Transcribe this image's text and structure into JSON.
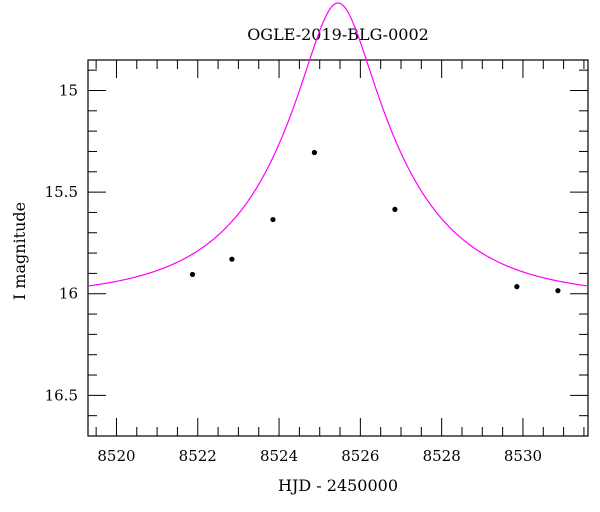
{
  "chart_data": {
    "type": "scatter",
    "title": "OGLE-2019-BLG-0002",
    "xlabel": "HJD - 2450000",
    "ylabel": "I magnitude",
    "xlim": [
      8519.3,
      8531.6
    ],
    "ylim": [
      16.7,
      14.85
    ],
    "y_inverted": true,
    "x_ticks": [
      8520,
      8522,
      8524,
      8526,
      8528,
      8530
    ],
    "x_tick_labels": [
      "8520",
      "8522",
      "8524",
      "8526",
      "8528",
      "8530"
    ],
    "y_ticks": [
      15,
      15.5,
      16,
      16.5
    ],
    "y_tick_labels": [
      "15",
      "15.5",
      "16",
      "16.5"
    ],
    "grid": false,
    "series": [
      {
        "kind": "points",
        "color": "#000000",
        "x": [
          8521.87,
          8522.84,
          8523.85,
          8524.87,
          8526.85,
          8529.85,
          8530.86
        ],
        "y": [
          15.905,
          15.83,
          15.635,
          15.305,
          15.585,
          15.965,
          15.985
        ]
      },
      {
        "kind": "model-curve",
        "color": "#ff00ff",
        "model": {
          "t0": 8525.45,
          "u0": 0.27,
          "tE": 3.0,
          "baseline_mag": 16.02
        }
      }
    ]
  }
}
